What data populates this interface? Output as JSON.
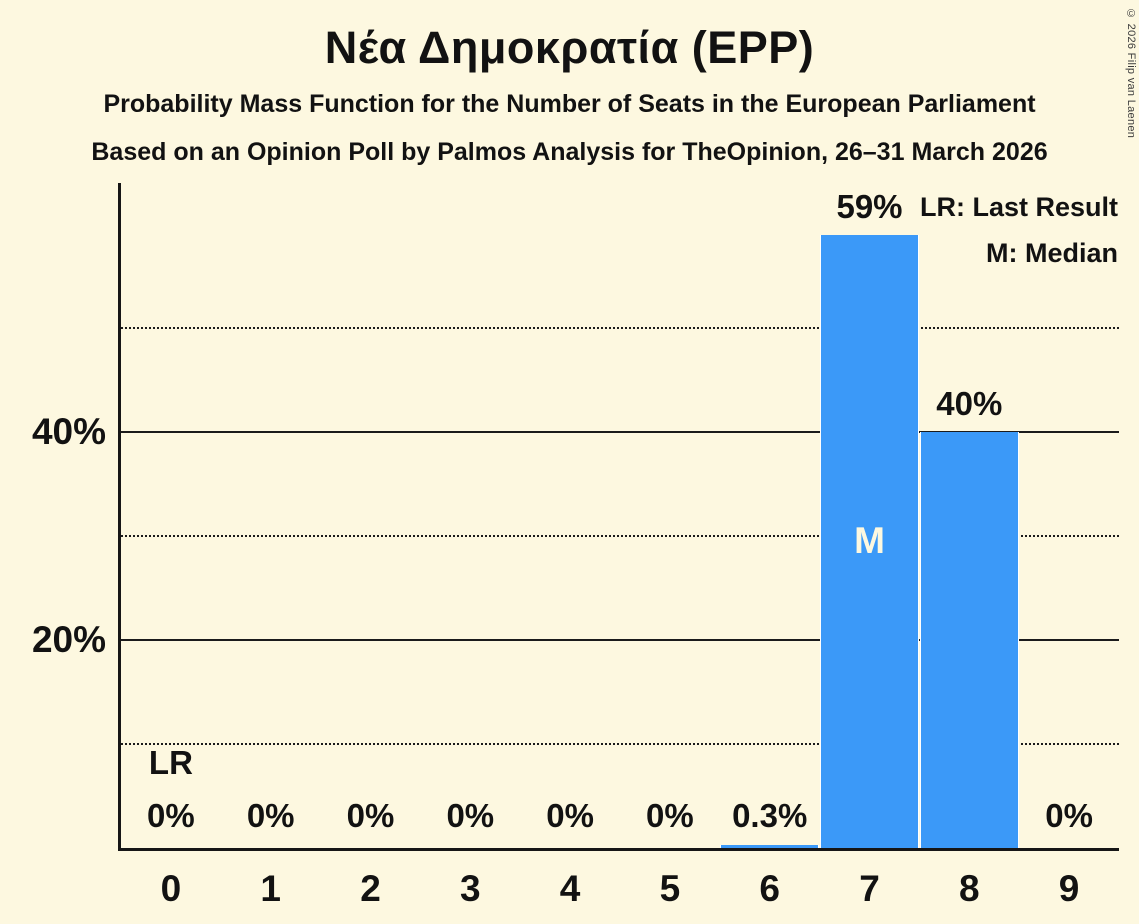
{
  "page": {
    "background_color": "#FDF8E0",
    "text_color": "#121212"
  },
  "header": {
    "title": "Νέα Δημοκρατία (EPP)",
    "subtitle1": "Probability Mass Function for the Number of Seats in the European Parliament",
    "subtitle2": "Based on an Opinion Poll by Palmos Analysis for TheOpinion, 26–31 March 2026"
  },
  "legend": {
    "last_result_label": "LR: Last Result",
    "median_label": "M: Median"
  },
  "copyright": "© 2026 Filip van Laenen",
  "chart_data": {
    "type": "bar",
    "title": "Νέα Δημοκρατία (EPP)",
    "xlabel": "",
    "ylabel": "",
    "categories": [
      "0",
      "1",
      "2",
      "3",
      "4",
      "5",
      "6",
      "7",
      "8",
      "9"
    ],
    "values": [
      0,
      0,
      0,
      0,
      0,
      0,
      0.3,
      59,
      40,
      0
    ],
    "bar_labels": [
      "0%",
      "0%",
      "0%",
      "0%",
      "0%",
      "0%",
      "0.3%",
      "59%",
      "40%",
      "0%"
    ],
    "ylim": [
      0,
      64
    ],
    "y_solid_gridlines": [
      20,
      40
    ],
    "y_dotted_gridlines": [
      10,
      30,
      50
    ],
    "y_tick_labels": [
      {
        "value": 20,
        "label": "20%"
      },
      {
        "value": 40,
        "label": "40%"
      }
    ],
    "median_category_index": 7,
    "median_marker": "M",
    "last_result_category_index": 0,
    "last_result_marker": "LR",
    "bar_color": "#3B99F8",
    "grid": true,
    "legend_position": "top-right"
  }
}
